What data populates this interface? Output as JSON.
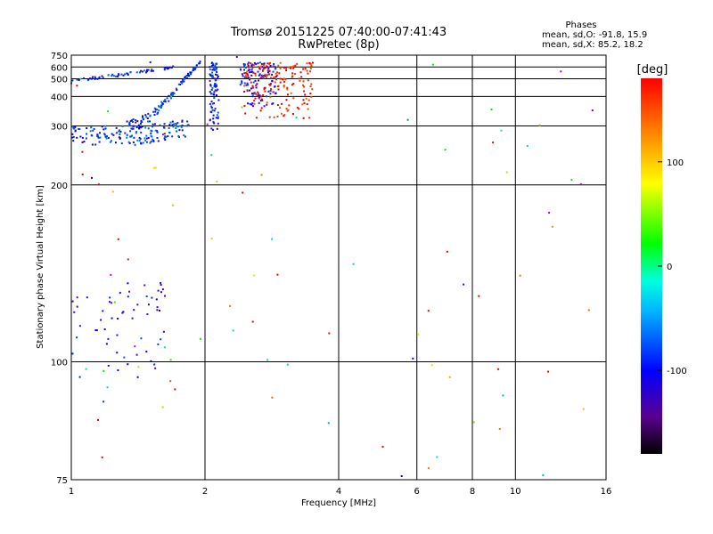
{
  "chart_data": {
    "type": "scatter",
    "title": "Tromsø 20151225 07:40:00-07:41:43",
    "subtitle": "RwPretec (8p)",
    "xlabel": "Frequency [MHz]",
    "ylabel": "Stationary phase Virtual Height [km]",
    "xscale": "log",
    "yscale": "reciprocal",
    "xlim": [
      1,
      16
    ],
    "ylim": [
      75,
      750
    ],
    "xticks": [
      1,
      2,
      4,
      6,
      8,
      10,
      16
    ],
    "yticks": [
      75,
      100,
      200,
      300,
      400,
      500,
      600,
      750
    ],
    "grid": true,
    "stats": {
      "heading": "Phases",
      "line1": "mean, sd,O: -91.8, 15.9",
      "line2": "mean, sd,X:  85.2, 18.2"
    },
    "colorbar": {
      "label": "[deg]",
      "range": [
        -180,
        180
      ],
      "ticks": [
        100,
        0,
        -100
      ]
    },
    "series": [
      {
        "freq_range": [
          1.0,
          1.85
        ],
        "height_range": [
          240,
          300
        ],
        "phase": -90,
        "trace": "o-lower",
        "count": 160
      },
      {
        "freq_range": [
          1.3,
          1.95
        ],
        "height_range": [
          300,
          650
        ],
        "phase": -90,
        "trace": "o-rising",
        "count": 120
      },
      {
        "freq_range": [
          1.0,
          1.7
        ],
        "height_range": [
          480,
          600
        ],
        "phase": -90,
        "trace": "o-upper",
        "count": 60
      },
      {
        "freq_range": [
          2.05,
          2.15
        ],
        "height_range": [
          290,
          650
        ],
        "phase": -95,
        "trace": "o-vertical",
        "count": 90
      },
      {
        "freq_range": [
          2.4,
          2.9
        ],
        "height_range": [
          360,
          650
        ],
        "phase": -100,
        "trace": "o-band",
        "count": 110
      },
      {
        "freq_range": [
          2.45,
          3.5
        ],
        "height_range": [
          320,
          650
        ],
        "phase": 95,
        "trace": "x-band",
        "count": 170
      },
      {
        "freq_range": [
          1.0,
          1.65
        ],
        "height_range": [
          95,
          130
        ],
        "phase": -100,
        "trace": "e-layer",
        "count": 60
      },
      {
        "freq_range": [
          1.0,
          16.0
        ],
        "height_range": [
          75,
          750
        ],
        "phase": 0,
        "trace": "scattered",
        "count": 90
      }
    ]
  }
}
